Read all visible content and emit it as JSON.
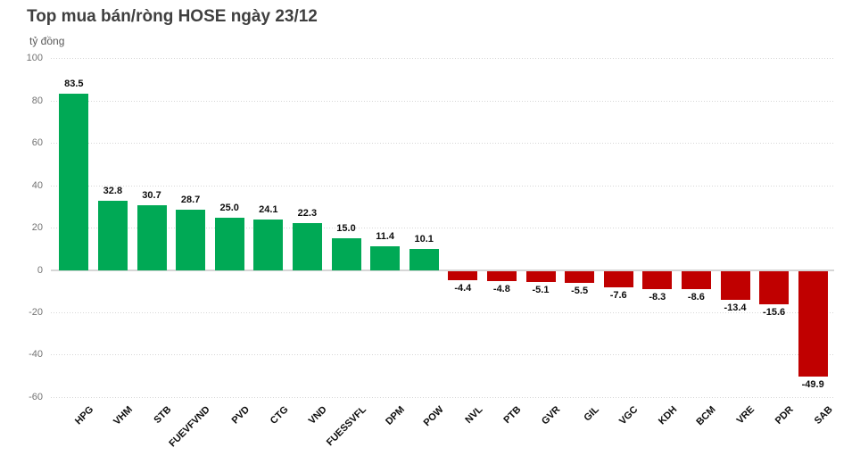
{
  "page": {
    "background_color": "#ffffff"
  },
  "chart_data": {
    "type": "bar",
    "title": "Top mua bán/ròng HOSE ngày 23/12",
    "unit_label": "tỷ đồng",
    "categories": [
      "HPG",
      "VHM",
      "STB",
      "FUEVFVND",
      "PVD",
      "CTG",
      "VND",
      "FUESSVFL",
      "DPM",
      "POW",
      "NVL",
      "PTB",
      "GVR",
      "GIL",
      "VGC",
      "KDH",
      "BCM",
      "VRE",
      "PDR",
      "SAB"
    ],
    "values": [
      83.5,
      32.8,
      30.7,
      28.7,
      25.0,
      24.1,
      22.3,
      15.0,
      11.4,
      10.1,
      -4.4,
      -4.8,
      -5.1,
      -5.5,
      -7.6,
      -8.3,
      -8.6,
      -13.4,
      -15.6,
      -49.9
    ],
    "value_labels": [
      "83.5",
      "32.8",
      "30.7",
      "28.7",
      "25.0",
      "24.1",
      "22.3",
      "15.0",
      "11.4",
      "10.1",
      "-4.4",
      "-4.8",
      "-5.1",
      "-5.5",
      "-7.6",
      "-8.3",
      "-8.6",
      "-13.4",
      "-15.6",
      "-49.9"
    ],
    "yticks": [
      100,
      80,
      60,
      40,
      20,
      0,
      -20,
      -40,
      -60
    ],
    "ylim": [
      -60,
      100
    ],
    "positive_color": "#00A955",
    "negative_color": "#C00000",
    "gridline_color": "#d6d6d6",
    "grid": true,
    "legend_position": "none",
    "xlabel": "",
    "ylabel": "tỷ đồng"
  }
}
